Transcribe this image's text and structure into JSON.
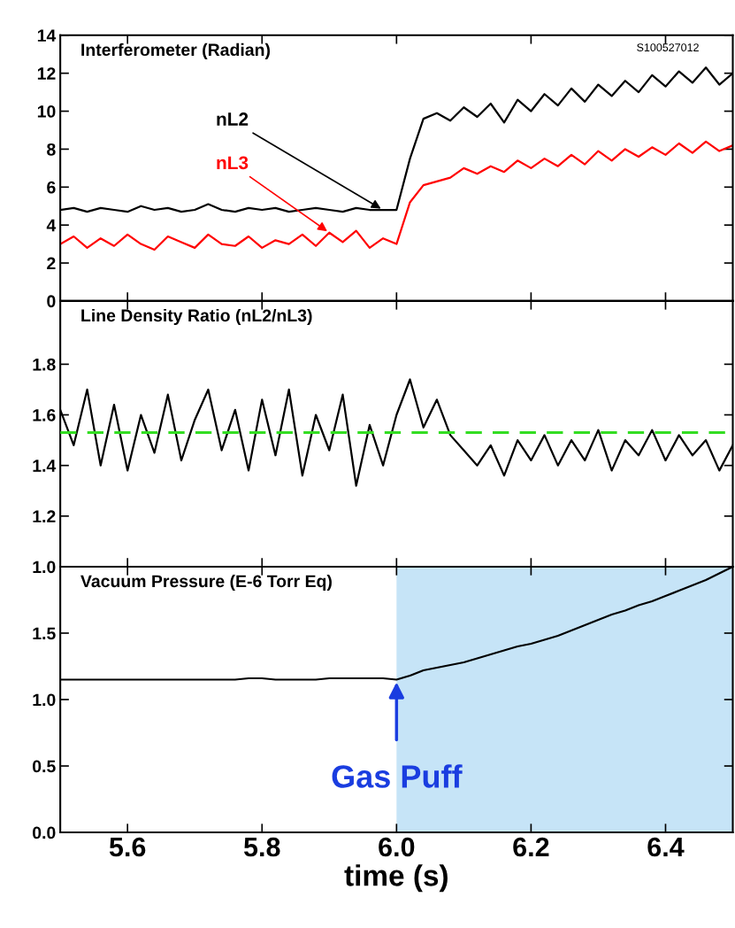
{
  "chart_data": [
    {
      "type": "line",
      "title": "Interferometer (Radian)",
      "annotations": [
        "S100527012"
      ],
      "x": [
        5.5,
        5.52,
        5.54,
        5.56,
        5.58,
        5.6,
        5.62,
        5.64,
        5.66,
        5.68,
        5.7,
        5.72,
        5.74,
        5.76,
        5.78,
        5.8,
        5.82,
        5.84,
        5.86,
        5.88,
        5.9,
        5.92,
        5.94,
        5.96,
        5.98,
        6.0,
        6.02,
        6.04,
        6.06,
        6.08,
        6.1,
        6.12,
        6.14,
        6.16,
        6.18,
        6.2,
        6.22,
        6.24,
        6.26,
        6.28,
        6.3,
        6.32,
        6.34,
        6.36,
        6.38,
        6.4,
        6.42,
        6.44,
        6.46,
        6.48,
        6.5
      ],
      "series": [
        {
          "name": "nL2",
          "color": "#000000",
          "values": [
            4.8,
            4.9,
            4.7,
            4.9,
            4.8,
            4.7,
            5.0,
            4.8,
            4.9,
            4.7,
            4.8,
            5.1,
            4.8,
            4.7,
            4.9,
            4.8,
            4.9,
            4.7,
            4.8,
            4.9,
            4.8,
            4.7,
            4.9,
            4.8,
            4.8,
            4.8,
            7.5,
            9.6,
            9.9,
            9.5,
            10.2,
            9.7,
            10.4,
            9.4,
            10.6,
            10.0,
            10.9,
            10.3,
            11.2,
            10.5,
            11.4,
            10.8,
            11.6,
            11.0,
            11.9,
            11.3,
            12.1,
            11.5,
            12.3,
            11.4,
            12.0
          ]
        },
        {
          "name": "nL3",
          "color": "#ff0000",
          "values": [
            3.0,
            3.4,
            2.8,
            3.3,
            2.9,
            3.5,
            3.0,
            2.7,
            3.4,
            3.1,
            2.8,
            3.5,
            3.0,
            2.9,
            3.4,
            2.8,
            3.2,
            3.0,
            3.5,
            2.9,
            3.6,
            3.1,
            3.7,
            2.8,
            3.3,
            3.0,
            5.2,
            6.1,
            6.3,
            6.5,
            7.0,
            6.7,
            7.1,
            6.8,
            7.4,
            7.0,
            7.5,
            7.1,
            7.7,
            7.2,
            7.9,
            7.4,
            8.0,
            7.6,
            8.1,
            7.7,
            8.3,
            7.8,
            8.4,
            7.9,
            8.2
          ]
        }
      ],
      "xlim": [
        5.5,
        6.5
      ],
      "xticks": [
        5.6,
        5.8,
        6.0,
        6.2,
        6.4
      ],
      "ylim": [
        0,
        14
      ],
      "yticks": [
        0,
        2,
        4,
        6,
        8,
        10,
        12,
        14
      ],
      "tick_labels": "y",
      "grid": false,
      "legend": false
    },
    {
      "type": "line",
      "title": "Line Density Ratio (nL2/nL3)",
      "x": [
        5.5,
        5.52,
        5.54,
        5.56,
        5.58,
        5.6,
        5.62,
        5.64,
        5.66,
        5.68,
        5.7,
        5.72,
        5.74,
        5.76,
        5.78,
        5.8,
        5.82,
        5.84,
        5.86,
        5.88,
        5.9,
        5.92,
        5.94,
        5.96,
        5.98,
        6.0,
        6.02,
        6.04,
        6.06,
        6.08,
        6.1,
        6.12,
        6.14,
        6.16,
        6.18,
        6.2,
        6.22,
        6.24,
        6.26,
        6.28,
        6.3,
        6.32,
        6.34,
        6.36,
        6.38,
        6.4,
        6.42,
        6.44,
        6.46,
        6.48,
        6.5
      ],
      "series": [
        {
          "color": "#000000",
          "values": [
            1.62,
            1.48,
            1.7,
            1.4,
            1.64,
            1.38,
            1.6,
            1.45,
            1.68,
            1.42,
            1.58,
            1.7,
            1.46,
            1.62,
            1.38,
            1.66,
            1.44,
            1.7,
            1.36,
            1.6,
            1.46,
            1.68,
            1.32,
            1.56,
            1.4,
            1.6,
            1.74,
            1.55,
            1.66,
            1.52,
            1.46,
            1.4,
            1.48,
            1.36,
            1.5,
            1.42,
            1.52,
            1.4,
            1.5,
            1.42,
            1.54,
            1.38,
            1.5,
            1.44,
            1.54,
            1.42,
            1.52,
            1.44,
            1.5,
            1.38,
            1.48
          ]
        }
      ],
      "ref_lines": [
        {
          "axis": "y",
          "value": 1.53,
          "color": "#33dd22",
          "line_style": "dashed"
        }
      ],
      "xlim": [
        5.5,
        6.5
      ],
      "xticks": [
        5.6,
        5.8,
        6.0,
        6.2,
        6.4
      ],
      "ylim": [
        1.0,
        2.05
      ],
      "yticks": [
        {
          "value": 1.0,
          "label": "1.0"
        },
        1.2,
        1.4,
        1.6,
        1.8
      ],
      "tick_labels": "y",
      "grid": false,
      "legend": false
    },
    {
      "type": "line",
      "title": "Vacuum Pressure (E-6 Torr Eq)",
      "xlabel": "time (s)",
      "annotations": [
        {
          "text": "Gas Puff",
          "x": 6.0,
          "y": 1.15
        }
      ],
      "x": [
        5.5,
        5.52,
        5.54,
        5.56,
        5.58,
        5.6,
        5.62,
        5.64,
        5.66,
        5.68,
        5.7,
        5.72,
        5.74,
        5.76,
        5.78,
        5.8,
        5.82,
        5.84,
        5.86,
        5.88,
        5.9,
        5.92,
        5.94,
        5.96,
        5.98,
        6.0,
        6.02,
        6.04,
        6.06,
        6.08,
        6.1,
        6.12,
        6.14,
        6.16,
        6.18,
        6.2,
        6.22,
        6.24,
        6.26,
        6.28,
        6.3,
        6.32,
        6.34,
        6.36,
        6.38,
        6.4,
        6.42,
        6.44,
        6.46,
        6.48,
        6.5
      ],
      "series": [
        {
          "color": "#000000",
          "values": [
            1.15,
            1.15,
            1.15,
            1.15,
            1.15,
            1.15,
            1.15,
            1.15,
            1.15,
            1.15,
            1.15,
            1.15,
            1.15,
            1.15,
            1.16,
            1.16,
            1.15,
            1.15,
            1.15,
            1.15,
            1.16,
            1.16,
            1.16,
            1.16,
            1.16,
            1.15,
            1.18,
            1.22,
            1.24,
            1.26,
            1.28,
            1.31,
            1.34,
            1.37,
            1.4,
            1.42,
            1.45,
            1.48,
            1.52,
            1.56,
            1.6,
            1.64,
            1.67,
            1.71,
            1.74,
            1.78,
            1.82,
            1.86,
            1.9,
            1.95,
            2.0
          ]
        }
      ],
      "bands": [
        {
          "axis": "x",
          "from": 6.0,
          "to": 6.5,
          "color": "#c6e4f7"
        }
      ],
      "xlim": [
        5.5,
        6.5
      ],
      "xticks": [
        5.6,
        5.8,
        {
          "value": 6.0,
          "label": "6.0"
        },
        6.2,
        6.4
      ],
      "ylim": [
        0,
        2.0
      ],
      "yticks": [
        {
          "value": 0.0,
          "label": "0.0"
        },
        0.5,
        {
          "value": 1.0,
          "label": "1.0"
        },
        1.5,
        {
          "value": 2.0,
          "label": null
        }
      ],
      "grid": false,
      "legend": false
    }
  ]
}
